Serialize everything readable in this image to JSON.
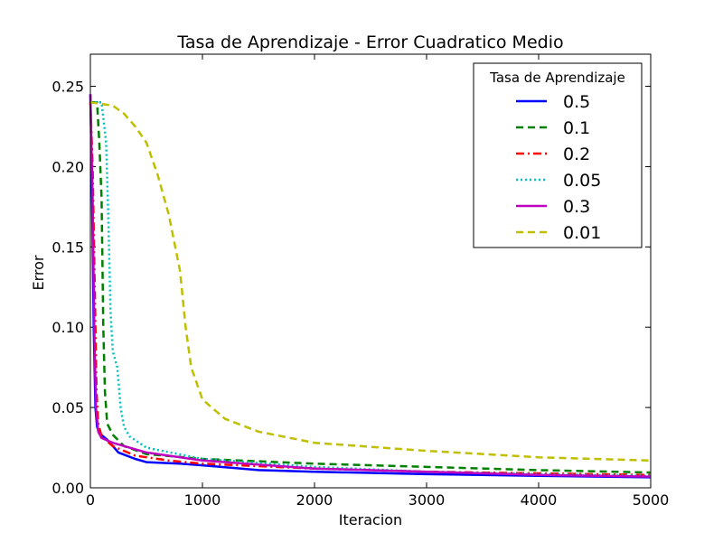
{
  "chart_data": {
    "type": "line",
    "title": "Tasa de Aprendizaje - Error Cuadratico Medio",
    "xlabel": "Iteracion",
    "ylabel": "Error",
    "xlim": [
      0,
      5000
    ],
    "ylim": [
      0,
      0.27
    ],
    "x_ticks": [
      "0",
      "1000",
      "2000",
      "3000",
      "4000",
      "5000"
    ],
    "y_ticks": [
      "0.00",
      "0.05",
      "0.10",
      "0.15",
      "0.20",
      "0.25"
    ],
    "grid": false,
    "legend": {
      "title": "Tasa de Aprendizaje",
      "position": "top-right"
    },
    "series": [
      {
        "name": "0.5",
        "color": "#0000ff",
        "style": "solid",
        "points": [
          [
            0,
            0.245
          ],
          [
            15,
            0.18
          ],
          [
            30,
            0.1
          ],
          [
            45,
            0.05
          ],
          [
            60,
            0.038
          ],
          [
            80,
            0.034
          ],
          [
            150,
            0.03
          ],
          [
            250,
            0.022
          ],
          [
            400,
            0.018
          ],
          [
            500,
            0.016
          ],
          [
            800,
            0.015
          ],
          [
            1000,
            0.014
          ],
          [
            1500,
            0.011
          ],
          [
            2000,
            0.01
          ],
          [
            3000,
            0.0085
          ],
          [
            4000,
            0.0075
          ],
          [
            5000,
            0.0065
          ]
        ]
      },
      {
        "name": "0.1",
        "color": "#008000",
        "style": "dashed",
        "points": [
          [
            0,
            0.24
          ],
          [
            60,
            0.24
          ],
          [
            80,
            0.215
          ],
          [
            100,
            0.18
          ],
          [
            115,
            0.1
          ],
          [
            130,
            0.06
          ],
          [
            150,
            0.04
          ],
          [
            200,
            0.033
          ],
          [
            300,
            0.026
          ],
          [
            500,
            0.021
          ],
          [
            1000,
            0.018
          ],
          [
            2000,
            0.015
          ],
          [
            3000,
            0.013
          ],
          [
            4000,
            0.011
          ],
          [
            5000,
            0.0095
          ]
        ]
      },
      {
        "name": "0.2",
        "color": "#ff0000",
        "style": "dashdot",
        "points": [
          [
            0,
            0.24
          ],
          [
            20,
            0.2
          ],
          [
            40,
            0.12
          ],
          [
            55,
            0.06
          ],
          [
            70,
            0.04
          ],
          [
            100,
            0.032
          ],
          [
            200,
            0.026
          ],
          [
            400,
            0.02
          ],
          [
            700,
            0.017
          ],
          [
            1000,
            0.015
          ],
          [
            2000,
            0.012
          ],
          [
            3000,
            0.01
          ],
          [
            4000,
            0.009
          ],
          [
            5000,
            0.008
          ]
        ]
      },
      {
        "name": "0.05",
        "color": "#00bfbf",
        "style": "dotted",
        "points": [
          [
            0,
            0.24
          ],
          [
            100,
            0.24
          ],
          [
            140,
            0.215
          ],
          [
            160,
            0.17
          ],
          [
            180,
            0.11
          ],
          [
            200,
            0.085
          ],
          [
            240,
            0.075
          ],
          [
            270,
            0.05
          ],
          [
            300,
            0.038
          ],
          [
            350,
            0.032
          ],
          [
            500,
            0.025
          ],
          [
            1000,
            0.018
          ],
          [
            2000,
            0.013
          ],
          [
            3000,
            0.01
          ],
          [
            4000,
            0.0085
          ],
          [
            5000,
            0.0075
          ]
        ]
      },
      {
        "name": "0.3",
        "color": "#bf00bf",
        "style": "solid",
        "points": [
          [
            0,
            0.245
          ],
          [
            20,
            0.18
          ],
          [
            35,
            0.1
          ],
          [
            50,
            0.05
          ],
          [
            70,
            0.035
          ],
          [
            100,
            0.031
          ],
          [
            200,
            0.028
          ],
          [
            500,
            0.022
          ],
          [
            1000,
            0.017
          ],
          [
            2000,
            0.012
          ],
          [
            3000,
            0.01
          ],
          [
            4000,
            0.008
          ],
          [
            5000,
            0.007
          ]
        ]
      },
      {
        "name": "0.01",
        "color": "#bfbf00",
        "style": "dashed",
        "points": [
          [
            0,
            0.24
          ],
          [
            200,
            0.238
          ],
          [
            300,
            0.233
          ],
          [
            400,
            0.225
          ],
          [
            500,
            0.215
          ],
          [
            600,
            0.195
          ],
          [
            700,
            0.17
          ],
          [
            800,
            0.135
          ],
          [
            850,
            0.1
          ],
          [
            900,
            0.075
          ],
          [
            1000,
            0.055
          ],
          [
            1200,
            0.043
          ],
          [
            1500,
            0.035
          ],
          [
            2000,
            0.028
          ],
          [
            3000,
            0.023
          ],
          [
            4000,
            0.019
          ],
          [
            5000,
            0.017
          ]
        ]
      }
    ]
  }
}
